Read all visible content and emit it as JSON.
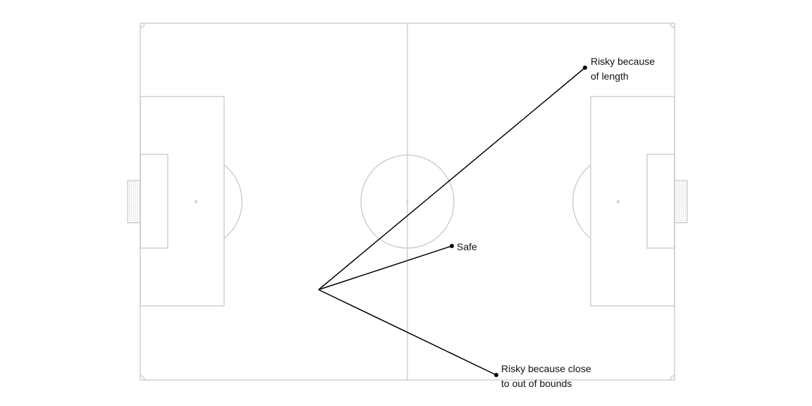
{
  "diagram": {
    "type": "football-pitch-pass-risk",
    "colors": {
      "pitch_lines": "#c8c8c8",
      "pass_lines": "#000000",
      "text": "#111111",
      "background": "#ffffff"
    },
    "passes": [
      {
        "name": "risky-length",
        "lines": [
          "Risky because",
          "of length"
        ]
      },
      {
        "name": "safe",
        "lines": [
          "Safe"
        ]
      },
      {
        "name": "risky-out-of-bounds",
        "lines": [
          "Risky because close",
          "to out of bounds"
        ]
      }
    ]
  }
}
